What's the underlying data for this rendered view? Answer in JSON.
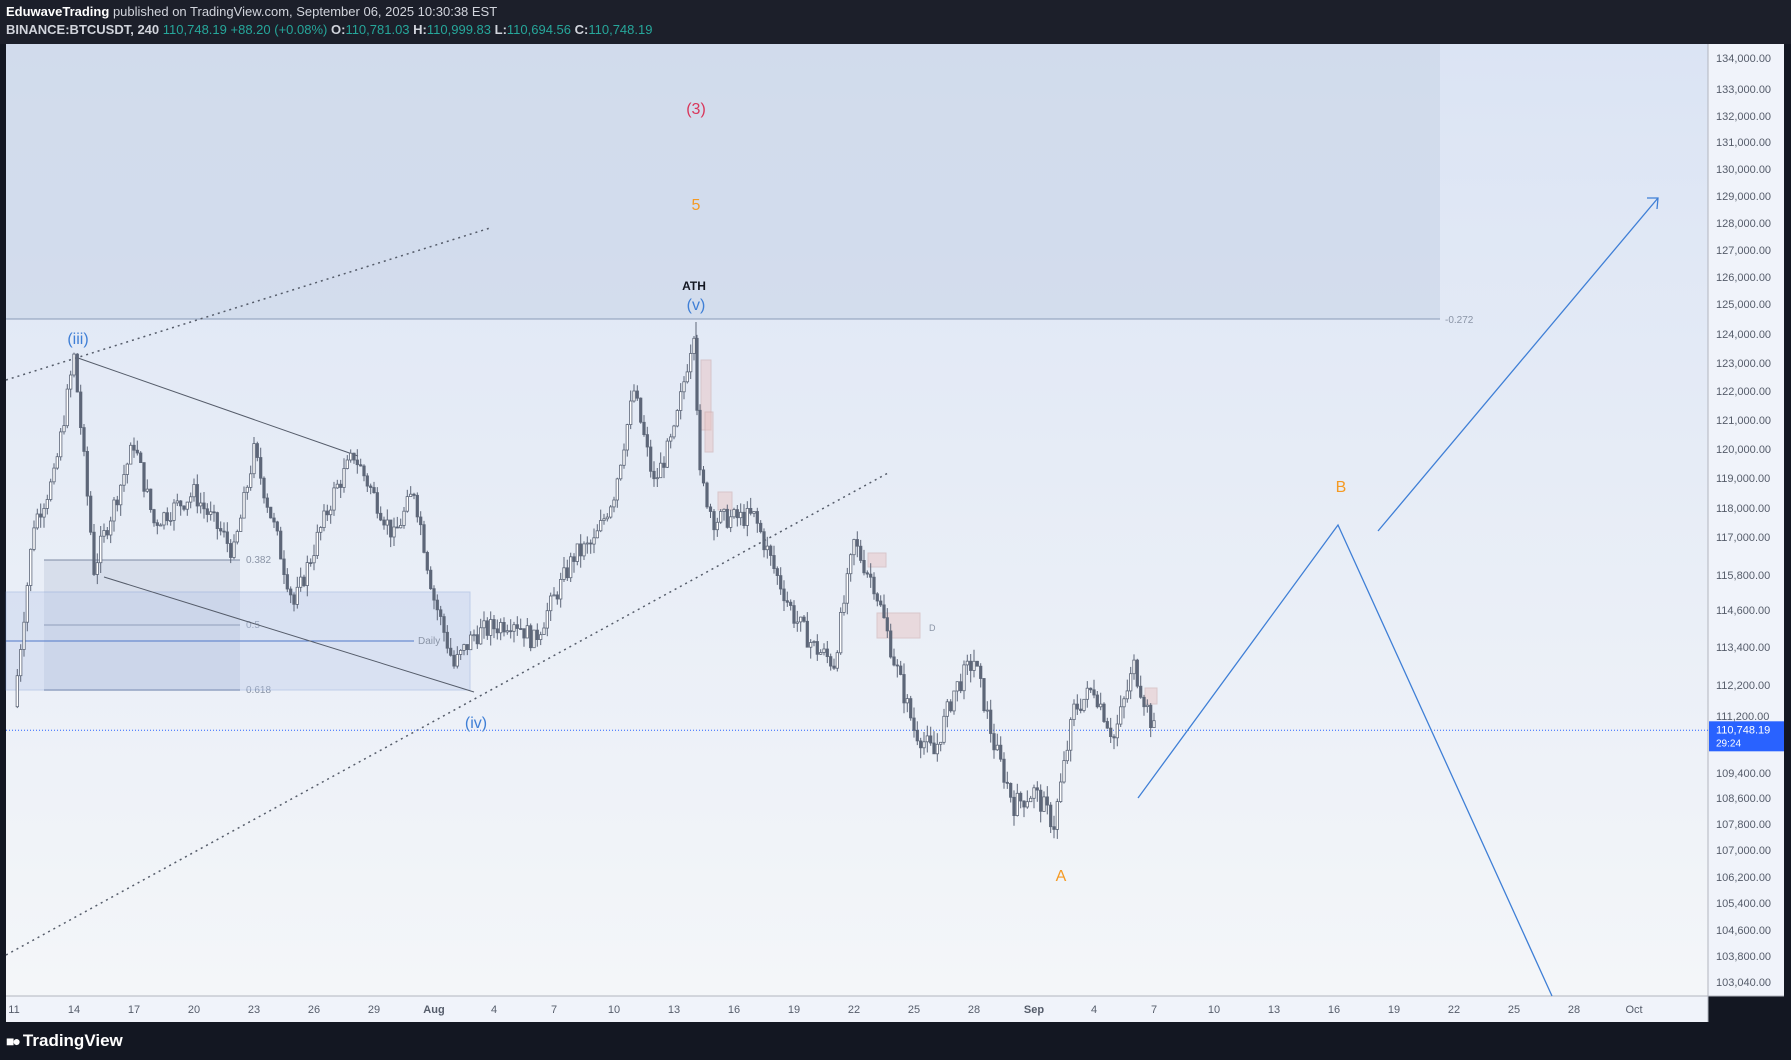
{
  "header": {
    "author": "EduwaveTrading",
    "published_text": "published on TradingView.com, September 06, 2025 10:30:38 EST",
    "symbol": "BINANCE:BTCUSDT, 240",
    "last": "110,748.19",
    "change": "+88.20 (+0.08%)",
    "o_label": "O:",
    "o": "110,781.03",
    "h_label": "H:",
    "h": "110,999.83",
    "l_label": "L:",
    "l": "110,694.56",
    "c_label": "C:",
    "c": "110,748.19"
  },
  "footer": {
    "brand": "TradingView",
    "logo_icon": "tradingview-logo-icon"
  },
  "colors": {
    "background": "#131722",
    "plot_top": "#dbe4f4",
    "plot_bottom": "#f3f5f9",
    "candle": "#5d6678",
    "wave_blue": "#3f7fd6",
    "wave_orange": "#f59a23",
    "wave_red": "#d9365a",
    "zone": "#cdd8ea",
    "price_tag": "#2962ff"
  },
  "chart_data": {
    "type": "candlestick",
    "symbol": "BTCUSDT",
    "exchange": "BINANCE",
    "timeframe": "240",
    "y_axis": {
      "ticks": [
        134000,
        133000,
        132000,
        131000,
        130000,
        129000,
        128000,
        127000,
        126000,
        125000,
        124000,
        123000,
        122000,
        121000,
        120000,
        119000,
        118000,
        117000,
        115800,
        114600,
        113400,
        112200,
        111200,
        109400,
        108600,
        107800,
        107000,
        106200,
        105400,
        104600,
        103800,
        103040
      ],
      "tick_labels": [
        "134,000.00",
        "133,000.00",
        "132,000.00",
        "131,000.00",
        "130,000.00",
        "129,000.00",
        "128,000.00",
        "127,000.00",
        "126,000.00",
        "125,000.00",
        "124,000.00",
        "123,000.00",
        "122,000.00",
        "121,000.00",
        "120,000.00",
        "119,000.00",
        "118,000.00",
        "117,000.00",
        "115,800.00",
        "114,600.00",
        "113,400.00",
        "112,200.00",
        "111,200.00",
        "109,400.00",
        "108,600.00",
        "107,800.00",
        "107,000.00",
        "106,200.00",
        "105,400.00",
        "104,600.00",
        "103,800.00",
        "103,040.00"
      ]
    },
    "x_axis": {
      "tick_labels": [
        "11",
        "14",
        "17",
        "20",
        "23",
        "26",
        "29",
        "Aug",
        "4",
        "7",
        "10",
        "13",
        "16",
        "19",
        "22",
        "25",
        "28",
        "Sep",
        "4",
        "7",
        "10",
        "13",
        "16",
        "19",
        "22",
        "25",
        "28",
        "Oct"
      ],
      "bold_labels": [
        "Aug",
        "Sep"
      ]
    },
    "last_price": {
      "value": 110748.19,
      "label": "110,748.19",
      "countdown": "29:24"
    },
    "path_points": [
      {
        "t": "Jul 11",
        "v": 111500
      },
      {
        "t": "Jul 12",
        "v": 117500
      },
      {
        "t": "Jul 13",
        "v": 119000
      },
      {
        "t": "Jul 14",
        "v": 123200
      },
      {
        "t": "Jul 15",
        "v": 116000
      },
      {
        "t": "Jul 17",
        "v": 120200
      },
      {
        "t": "Jul 18",
        "v": 117500
      },
      {
        "t": "Jul 20",
        "v": 118500
      },
      {
        "t": "Jul 22",
        "v": 116500
      },
      {
        "t": "Jul 23",
        "v": 119900
      },
      {
        "t": "Jul 25",
        "v": 114800
      },
      {
        "t": "Jul 27",
        "v": 118500
      },
      {
        "t": "Jul 28",
        "v": 119800
      },
      {
        "t": "Jul 30",
        "v": 117000
      },
      {
        "t": "Jul 31",
        "v": 118600
      },
      {
        "t": "Aug 01",
        "v": 115000
      },
      {
        "t": "Aug 02",
        "v": 112800
      },
      {
        "t": "Aug 03",
        "v": 113800
      },
      {
        "t": "Aug 05",
        "v": 114300
      },
      {
        "t": "Aug 06",
        "v": 113600
      },
      {
        "t": "Aug 08",
        "v": 116400
      },
      {
        "t": "Aug 09",
        "v": 116800
      },
      {
        "t": "Aug 10",
        "v": 118500
      },
      {
        "t": "Aug 11",
        "v": 122000
      },
      {
        "t": "Aug 12",
        "v": 118800
      },
      {
        "t": "Aug 13",
        "v": 120500
      },
      {
        "t": "Aug 14",
        "v": 124200
      },
      {
        "t": "Aug 14b",
        "v": 119000
      },
      {
        "t": "Aug 15",
        "v": 117600
      },
      {
        "t": "Aug 17",
        "v": 117700
      },
      {
        "t": "Aug 18",
        "v": 116000
      },
      {
        "t": "Aug 19",
        "v": 114400
      },
      {
        "t": "Aug 20",
        "v": 113400
      },
      {
        "t": "Aug 21",
        "v": 112900
      },
      {
        "t": "Aug 22",
        "v": 116800
      },
      {
        "t": "Aug 23",
        "v": 115500
      },
      {
        "t": "Aug 24",
        "v": 113000
      },
      {
        "t": "Aug 25",
        "v": 110800
      },
      {
        "t": "Aug 26",
        "v": 110000
      },
      {
        "t": "Aug 27",
        "v": 112000
      },
      {
        "t": "Aug 28",
        "v": 113000
      },
      {
        "t": "Aug 29",
        "v": 110300
      },
      {
        "t": "Aug 30",
        "v": 108400
      },
      {
        "t": "Aug 31",
        "v": 108800
      },
      {
        "t": "Sep 01",
        "v": 107800
      },
      {
        "t": "Sep 02",
        "v": 111400
      },
      {
        "t": "Sep 03",
        "v": 112100
      },
      {
        "t": "Sep 04",
        "v": 110500
      },
      {
        "t": "Sep 05",
        "v": 112800
      },
      {
        "t": "Sep 06",
        "v": 110750
      }
    ],
    "annotations": {
      "waves": [
        {
          "text": "(iii)",
          "color": "#3f7fd6"
        },
        {
          "text": "(iv)",
          "color": "#3f7fd6"
        },
        {
          "text": "(v)",
          "color": "#3f7fd6"
        },
        {
          "text": "ATH",
          "color": "#131722"
        },
        {
          "text": "(3)",
          "color": "#d9365a"
        },
        {
          "text": "5",
          "color": "#f59a23"
        },
        {
          "text": "A",
          "color": "#f59a23"
        },
        {
          "text": "B",
          "color": "#f59a23"
        }
      ],
      "fib_labels": [
        "0.382",
        "0.5",
        "0.618",
        "-0.272"
      ],
      "daily_label": "Daily",
      "fvg_label": "D",
      "projection": [
        {
          "t": "Sep 06",
          "v": 108800
        },
        {
          "t": "Sep 15",
          "v": 117200
        },
        {
          "t": "Sep 26",
          "v": 102500
        }
      ],
      "arrow": {
        "from": {
          "t": "Sep 16",
          "v": 117100
        },
        "to": {
          "t": "Sep 30",
          "v": 128800
        }
      },
      "zone_bottom_value": 124500,
      "zone_top_value": 134600
    }
  }
}
